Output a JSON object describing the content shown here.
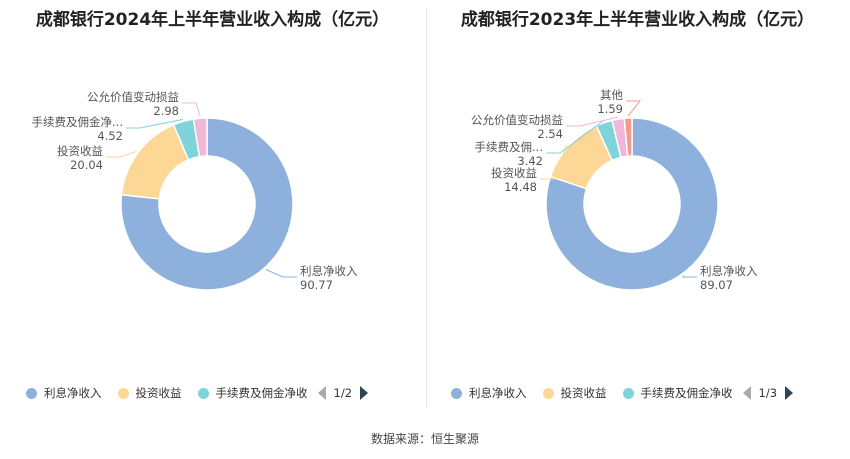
{
  "charts": [
    {
      "title": "成都银行2024年上半年营业收入构成（亿元）",
      "pager": "1/2",
      "legend": [
        "利息净收入",
        "投资收益",
        "手续费及佣金净收"
      ],
      "chart_data": {
        "type": "pie",
        "style": "donut",
        "unit": "亿元",
        "slices": [
          {
            "name": "利息净收入",
            "label": "利息净收入",
            "value": 90.77,
            "value_text": "90.77",
            "color": "#8eb0dd"
          },
          {
            "name": "投资收益",
            "label": "投资收益",
            "value": 20.04,
            "value_text": "20.04",
            "color": "#fdd795"
          },
          {
            "name": "手续费及佣金净收入",
            "label": "手续费及佣金净...",
            "value": 4.52,
            "value_text": "4.52",
            "color": "#7fd3da"
          },
          {
            "name": "公允价值变动损益",
            "label": "公允价值变动损益",
            "value": 2.98,
            "value_text": "2.98",
            "color": "#f0b7d8"
          }
        ]
      }
    },
    {
      "title": "成都银行2023年上半年营业收入构成（亿元）",
      "pager": "1/3",
      "legend": [
        "利息净收入",
        "投资收益",
        "手续费及佣金净收"
      ],
      "chart_data": {
        "type": "pie",
        "style": "donut",
        "unit": "亿元",
        "slices": [
          {
            "name": "利息净收入",
            "label": "利息净收入",
            "value": 89.07,
            "value_text": "89.07",
            "color": "#8eb0dd"
          },
          {
            "name": "投资收益",
            "label": "投资收益",
            "value": 14.48,
            "value_text": "14.48",
            "color": "#fdd795"
          },
          {
            "name": "手续费及佣金净收入",
            "label": "手续费及佣...",
            "value": 3.42,
            "value_text": "3.42",
            "color": "#7fd3da"
          },
          {
            "name": "公允价值变动损益",
            "label": "公允价值变动损益",
            "value": 2.54,
            "value_text": "2.54",
            "color": "#f0b7d8"
          },
          {
            "name": "其他",
            "label": "其他",
            "value": 1.59,
            "value_text": "1.59",
            "color": "#f3988f"
          }
        ]
      }
    }
  ],
  "source": "数据来源：恒生聚源"
}
